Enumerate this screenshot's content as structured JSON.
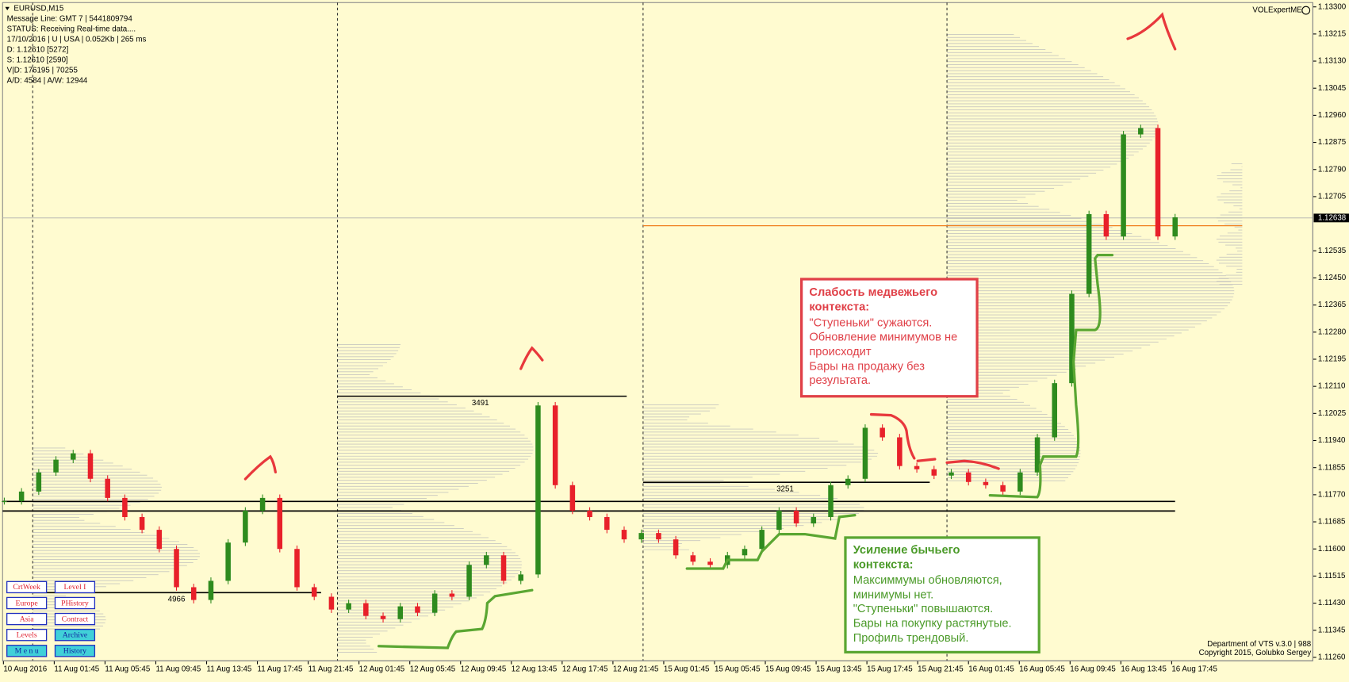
{
  "header": {
    "symbol": "EURUSD,M15",
    "lines": [
      "Message Line: GMT 7 | 5441809794",
      "STATUS:  Receiving Real-time data....",
      "17/10/2016 | U | USA | 0.052Kb | 265 ms",
      "D: 1.12610  [5272]",
      "S: 1.12610  [2590]",
      "V|D: 176195 | 70255",
      "A/D: 4584 | A/W: 12944"
    ]
  },
  "indicator": "VOLExpertME",
  "chart_data": {
    "type": "candlestick",
    "categories": [
      "10 Aug 2016",
      "11 Aug 01:45",
      "11 Aug 05:45",
      "11 Aug 09:45",
      "11 Aug 13:45",
      "11 Aug 17:45",
      "11 Aug 21:45",
      "12 Aug 01:45",
      "12 Aug 05:45",
      "12 Aug 09:45",
      "12 Aug 13:45",
      "12 Aug 17:45",
      "12 Aug 21:45",
      "15 Aug 01:45",
      "15 Aug 05:45",
      "15 Aug 09:45",
      "15 Aug 13:45",
      "15 Aug 17:45",
      "15 Aug 21:45",
      "16 Aug 01:45",
      "16 Aug 05:45",
      "16 Aug 09:45",
      "16 Aug 13:45",
      "16 Aug 17:45"
    ],
    "closes": [
      1.1175,
      1.1178,
      1.1184,
      1.1188,
      1.119,
      1.1182,
      1.1176,
      1.117,
      1.1166,
      1.116,
      1.1148,
      1.1144,
      1.115,
      1.1162,
      1.1172,
      1.1176,
      1.116,
      1.1148,
      1.1145,
      1.1141,
      1.1143,
      1.1139,
      1.1138,
      1.1142,
      1.114,
      1.1146,
      1.1145,
      1.1155,
      1.1158,
      1.115,
      1.1152,
      1.1205,
      1.118,
      1.1172,
      1.117,
      1.1166,
      1.1163,
      1.1165,
      1.1163,
      1.1158,
      1.1156,
      1.1155,
      1.1158,
      1.116,
      1.1166,
      1.1172,
      1.1168,
      1.117,
      1.118,
      1.1182,
      1.1198,
      1.1195,
      1.1186,
      1.1185,
      1.1183,
      1.1184,
      1.1181,
      1.118,
      1.1178,
      1.1184,
      1.1195,
      1.1212,
      1.124,
      1.1265,
      1.1258,
      1.129,
      1.1292,
      1.1258,
      1.1264
    ],
    "up_color": "#2e8b1e",
    "down_color": "#e8202a",
    "ylim": [
      1.1126,
      1.133
    ],
    "yticks": [
      {
        "value": 1.133,
        "label": "1.13300"
      },
      {
        "value": 1.13215,
        "label": "1.13215"
      },
      {
        "value": 1.1313,
        "label": "1.13130"
      },
      {
        "value": 1.13045,
        "label": "1.13045"
      },
      {
        "value": 1.1296,
        "label": "1.12960"
      },
      {
        "value": 1.12875,
        "label": "1.12875"
      },
      {
        "value": 1.1279,
        "label": "1.12790"
      },
      {
        "value": 1.12705,
        "label": "1.12705"
      },
      {
        "value": 1.12535,
        "label": "1.12535"
      },
      {
        "value": 1.1245,
        "label": "1.12450"
      },
      {
        "value": 1.12365,
        "label": "1.12365"
      },
      {
        "value": 1.1228,
        "label": "1.12280"
      },
      {
        "value": 1.12195,
        "label": "1.12195"
      },
      {
        "value": 1.1211,
        "label": "1.12110"
      },
      {
        "value": 1.12025,
        "label": "1.12025"
      },
      {
        "value": 1.1194,
        "label": "1.11940"
      },
      {
        "value": 1.11855,
        "label": "1.11855"
      },
      {
        "value": 1.1177,
        "label": "1.11770"
      },
      {
        "value": 1.11685,
        "label": "1.11685"
      },
      {
        "value": 1.116,
        "label": "1.11600"
      },
      {
        "value": 1.11515,
        "label": "1.11515"
      },
      {
        "value": 1.1143,
        "label": "1.11430"
      },
      {
        "value": 1.11345,
        "label": "1.11345"
      },
      {
        "value": 1.1126,
        "label": "1.11260"
      }
    ],
    "current_price": {
      "value": 1.12638,
      "label": "1.12638"
    },
    "levels": [
      {
        "label": "4966",
        "value": 1.11463
      },
      {
        "label": "3491",
        "value": 1.12079
      },
      {
        "label": "3251",
        "value": 1.11809
      }
    ],
    "support_lines": [
      1.11749,
      1.11719
    ]
  },
  "buttons": [
    [
      "CrtWeek",
      "Level I"
    ],
    [
      "Europe",
      "PHistory"
    ],
    [
      "Asia",
      "Contract"
    ],
    [
      "Levels",
      "Archive"
    ],
    [
      "M e n u",
      "History"
    ]
  ],
  "annotations": {
    "bear": {
      "title": [
        "Слабость медвежьего",
        "контекста:"
      ],
      "lines": [
        "\"Ступеньки\" сужаются.",
        "Обновление минимумов не",
        "происходит",
        "Бары на продажу без",
        "результата."
      ]
    },
    "bull": {
      "title": [
        "Усиление бычьего",
        "контекста:"
      ],
      "lines": [
        "Максиммумы обновляются,",
        "минимумы нет.",
        "\"Ступеньки\" повышаются.",
        "Бары на покупку растянутые.",
        "Профиль трендовый."
      ]
    }
  },
  "footer": [
    "Department of VTS  v.3.0 | 988",
    "Copyright 2015, Golubko Sergey"
  ]
}
